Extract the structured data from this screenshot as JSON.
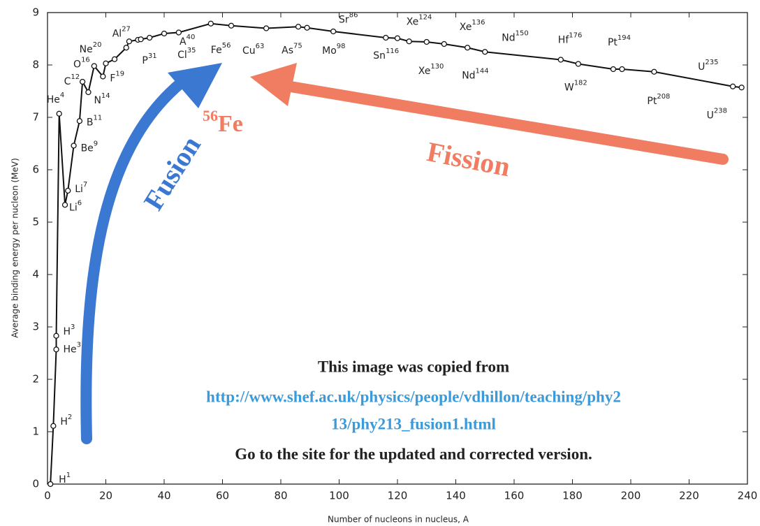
{
  "chart_data": {
    "type": "line",
    "x_label": "Number of nucleons in nucleus, A",
    "y_label": "Average binding energy per nucleon (MeV)",
    "x": [
      1,
      2,
      3,
      3,
      4,
      6,
      7,
      9,
      11,
      12,
      14,
      16,
      19,
      20,
      23,
      27,
      28,
      31,
      32,
      35,
      40,
      45,
      56,
      63,
      75,
      86,
      89,
      98,
      116,
      120,
      124,
      130,
      136,
      144,
      150,
      176,
      182,
      194,
      197,
      208,
      235,
      238
    ],
    "values": [
      0,
      1.11,
      2.57,
      2.83,
      7.07,
      5.33,
      5.6,
      6.46,
      6.93,
      7.68,
      7.48,
      7.98,
      7.78,
      8.03,
      8.11,
      8.33,
      8.45,
      8.48,
      8.49,
      8.52,
      8.6,
      8.62,
      8.79,
      8.75,
      8.7,
      8.73,
      8.71,
      8.64,
      8.52,
      8.51,
      8.45,
      8.44,
      8.4,
      8.33,
      8.25,
      8.1,
      8.02,
      7.92,
      7.92,
      7.87,
      7.59,
      7.57
    ],
    "labels": [
      "H",
      "H",
      "He",
      "H",
      "He",
      "Li",
      "Li",
      "Be",
      "B",
      "C",
      "N",
      "O",
      "F",
      "Ne",
      null,
      "Al",
      null,
      "P",
      null,
      "Cl",
      "A",
      null,
      "Fe",
      "Cu",
      "As",
      "Sr",
      null,
      "Mo",
      "Sn",
      null,
      "Xe",
      "Xe",
      "Xe",
      "Nd",
      "Nd",
      "Hf",
      "W",
      "Pt",
      null,
      "Pt",
      "U",
      "U"
    ],
    "color": "#111111",
    "xlim": [
      0,
      240
    ],
    "xticks": [
      0,
      20,
      40,
      60,
      80,
      100,
      120,
      140,
      160,
      180,
      200,
      220,
      240
    ],
    "ylim": [
      0,
      9
    ],
    "yticks": [
      0,
      1,
      2,
      3,
      4,
      5,
      6,
      7,
      8,
      9
    ],
    "annotations": {
      "fusion": "Fusion",
      "fission": "Fission",
      "iron_mass": "56",
      "iron_symbol": "Fe"
    }
  },
  "notice": [
    "This image was copied from",
    "http://www.shef.ac.uk/physics/people/vdhillon/teaching/phy2",
    "13/phy213_fusion1.html",
    "Go to the site for the updated and corrected version."
  ]
}
